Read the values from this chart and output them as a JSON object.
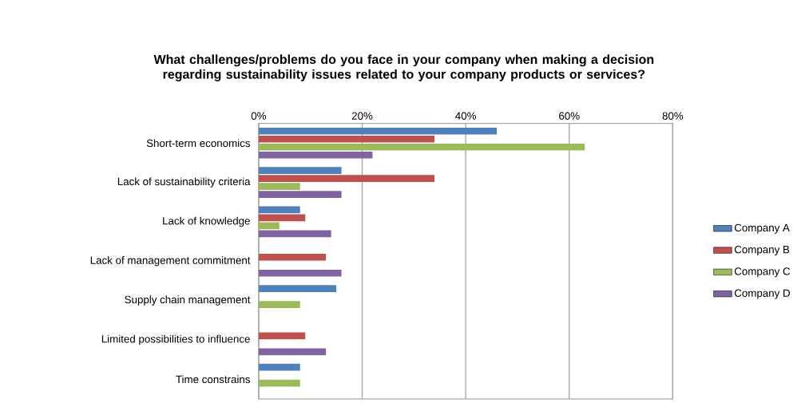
{
  "chart_data": {
    "type": "bar",
    "orientation": "horizontal",
    "title": "What challenges/problems do you face in your company when making a decision regarding sustainability issues related to your company products or services?",
    "categories": [
      "Short-term economics",
      "Lack of sustainability criteria",
      "Lack of knowledge",
      "Lack of management commitment",
      "Supply chain management",
      "Limited possibilities to influence",
      "Time constrains"
    ],
    "series": [
      {
        "name": "Company A",
        "color": "#4f81bd",
        "values": [
          0.46,
          0.16,
          0.08,
          null,
          0.15,
          null,
          0.08
        ]
      },
      {
        "name": "Company B",
        "color": "#c0504d",
        "values": [
          0.34,
          0.34,
          0.09,
          0.13,
          null,
          0.09,
          null
        ]
      },
      {
        "name": "Company C",
        "color": "#9bbb59",
        "values": [
          0.63,
          0.08,
          0.04,
          null,
          0.08,
          null,
          0.08
        ]
      },
      {
        "name": "Company D",
        "color": "#8064a2",
        "values": [
          0.22,
          0.16,
          0.14,
          0.16,
          null,
          0.13,
          null
        ]
      }
    ],
    "xlim": [
      0,
      0.8
    ],
    "xticks": [
      {
        "value": 0,
        "label": "0%"
      },
      {
        "value": 0.2,
        "label": "20%"
      },
      {
        "value": 0.4,
        "label": "40%"
      },
      {
        "value": 0.6,
        "label": "60%"
      },
      {
        "value": 0.8,
        "label": "80%"
      }
    ],
    "grid": "x",
    "legend": "right"
  }
}
